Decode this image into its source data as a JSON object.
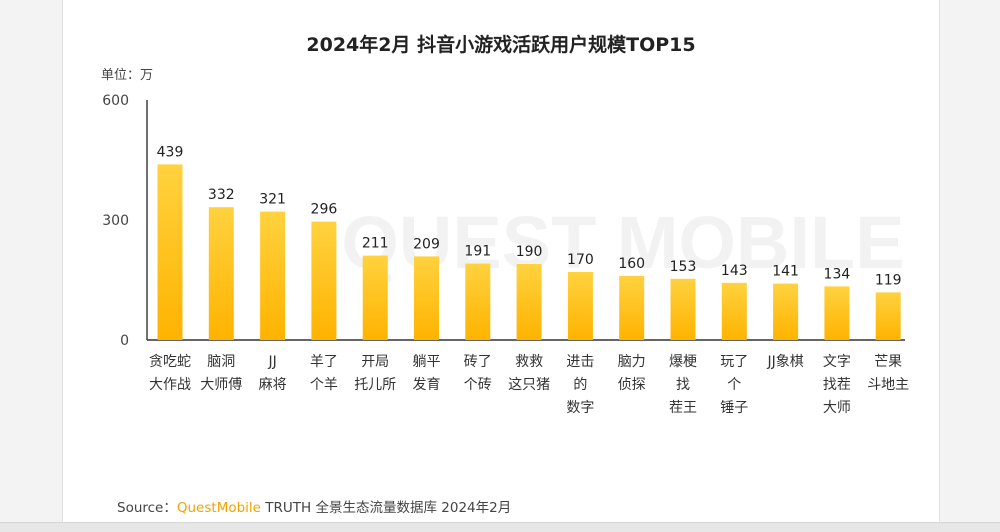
{
  "chart_data": {
    "type": "bar",
    "title": "2024年2月 抖音小游戏活跃用户规模TOP15",
    "unit_label": "单位：万",
    "ylim": [
      0,
      600
    ],
    "yticks": [
      "0",
      "300",
      "600"
    ],
    "categories": [
      [
        "贪吃蛇",
        "大作战"
      ],
      [
        "脑洞",
        "大师傅"
      ],
      [
        "JJ",
        "麻将"
      ],
      [
        "羊了",
        "个羊"
      ],
      [
        "开局",
        "托儿所"
      ],
      [
        "躺平",
        "发育"
      ],
      [
        "砖了",
        "个砖"
      ],
      [
        "救救",
        "这只猪"
      ],
      [
        "进击",
        "的",
        "数字"
      ],
      [
        "脑力",
        "侦探"
      ],
      [
        "爆梗",
        "找",
        "茬王"
      ],
      [
        "玩了",
        "个",
        "锤子"
      ],
      [
        "JJ象棋"
      ],
      [
        "文字",
        "找茬",
        "大师"
      ],
      [
        "芒果",
        "斗地主"
      ]
    ],
    "values": [
      439,
      332,
      321,
      296,
      211,
      209,
      191,
      190,
      170,
      160,
      153,
      143,
      141,
      134,
      119
    ],
    "colors": {
      "bar_top": "#ffd23f",
      "bar_bottom": "#ffb300",
      "axis": "#333333"
    },
    "watermark": "QUEST MOBILE"
  },
  "source": {
    "prefix": "Source：",
    "brand": "QuestMobile",
    "rest": " TRUTH 全景生态流量数据库 2024年2月"
  }
}
